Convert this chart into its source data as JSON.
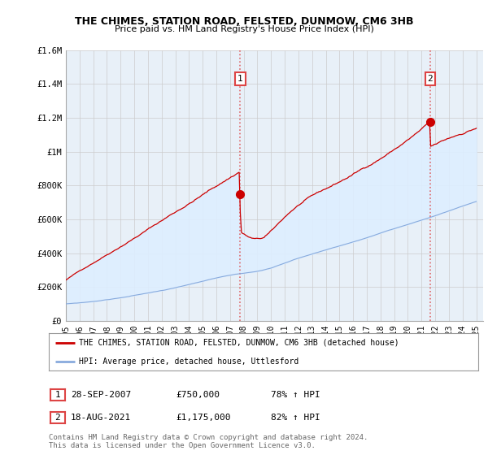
{
  "title": "THE CHIMES, STATION ROAD, FELSTED, DUNMOW, CM6 3HB",
  "subtitle": "Price paid vs. HM Land Registry's House Price Index (HPI)",
  "legend_label_red": "THE CHIMES, STATION ROAD, FELSTED, DUNMOW, CM6 3HB (detached house)",
  "legend_label_blue": "HPI: Average price, detached house, Uttlesford",
  "footnote": "Contains HM Land Registry data © Crown copyright and database right 2024.\nThis data is licensed under the Open Government Licence v3.0.",
  "sale1_date": "28-SEP-2007",
  "sale1_price": "£750,000",
  "sale1_hpi": "78% ↑ HPI",
  "sale1_year": 2007.75,
  "sale1_value": 750000,
  "sale2_date": "18-AUG-2021",
  "sale2_price": "£1,175,000",
  "sale2_hpi": "82% ↑ HPI",
  "sale2_year": 2021.62,
  "sale2_value": 1175000,
  "ylim": [
    0,
    1600000
  ],
  "xlim": [
    1995,
    2025.5
  ],
  "red_color": "#cc0000",
  "blue_color": "#88aadd",
  "fill_color": "#ddeeff",
  "dashed_color": "#dd4444",
  "background_color": "#ffffff",
  "grid_color": "#cccccc",
  "yticks": [
    0,
    200000,
    400000,
    600000,
    800000,
    1000000,
    1200000,
    1400000,
    1600000
  ],
  "ytick_labels": [
    "£0",
    "£200K",
    "£400K",
    "£600K",
    "£800K",
    "£1M",
    "£1.2M",
    "£1.4M",
    "£1.6M"
  ],
  "xticks": [
    1995,
    1996,
    1997,
    1998,
    1999,
    2000,
    2001,
    2002,
    2003,
    2004,
    2005,
    2006,
    2007,
    2008,
    2009,
    2010,
    2011,
    2012,
    2013,
    2014,
    2015,
    2016,
    2017,
    2018,
    2019,
    2020,
    2021,
    2022,
    2023,
    2024,
    2025
  ]
}
